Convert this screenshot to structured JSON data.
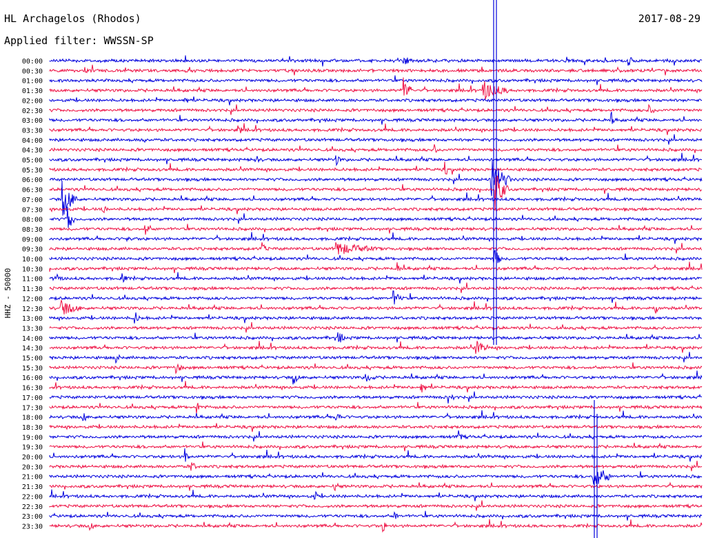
{
  "header": {
    "station": "HL Archagelos (Rhodos)",
    "date": "2017-08-29",
    "filter": "Applied filter: WWSSN-SP"
  },
  "chart_data": {
    "type": "line",
    "title": "HL Archagelos (Rhodos)",
    "subtitle": "Applied filter: WWSSN-SP",
    "ylabel": "HHZ - 50000",
    "grid": false,
    "colors": [
      "#0000dd",
      "#ee1144"
    ],
    "rows": [
      "00:00",
      "00:30",
      "01:00",
      "01:30",
      "02:00",
      "02:30",
      "03:00",
      "03:30",
      "04:00",
      "04:30",
      "05:00",
      "05:30",
      "06:00",
      "06:30",
      "07:00",
      "07:30",
      "08:00",
      "08:30",
      "09:00",
      "09:30",
      "10:00",
      "10:30",
      "11:00",
      "11:30",
      "12:00",
      "12:30",
      "13:00",
      "13:30",
      "14:00",
      "14:30",
      "15:00",
      "15:30",
      "16:00",
      "16:30",
      "17:00",
      "17:30",
      "18:00",
      "18:30",
      "19:00",
      "19:30",
      "20:00",
      "20:30",
      "21:00",
      "21:30",
      "22:00",
      "22:30",
      "23:00",
      "23:30"
    ]
  }
}
